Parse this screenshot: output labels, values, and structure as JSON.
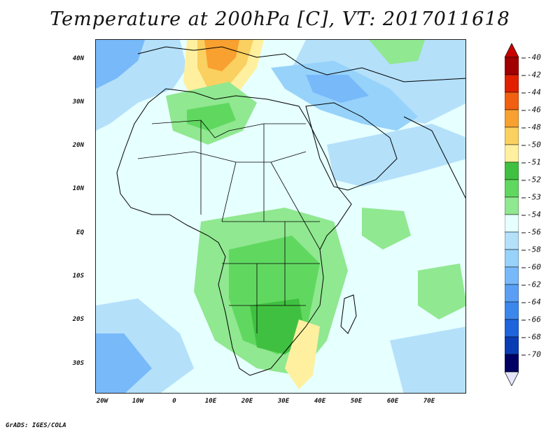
{
  "title": "Temperature at 200hPa [C], VT: 2017011618",
  "credit": "GrADS: IGES/COLA",
  "map": {
    "lat_labels": [
      "40N",
      "30N",
      "20N",
      "10N",
      "EQ",
      "10S",
      "20S",
      "30S"
    ],
    "lon_labels": [
      "20W",
      "10W",
      "0",
      "10E",
      "20E",
      "30E",
      "40E",
      "50E",
      "60E",
      "70E"
    ],
    "background_color": "#e6ffff"
  },
  "colorbar": {
    "labels": [
      "-40",
      "-42",
      "-44",
      "-46",
      "-48",
      "-50",
      "-51",
      "-52",
      "-53",
      "-54",
      "-56",
      "-58",
      "-60",
      "-62",
      "-64",
      "-66",
      "-68",
      "-70"
    ],
    "colors": [
      "#a00000",
      "#e02000",
      "#f06010",
      "#f8a030",
      "#fad060",
      "#fff0a0",
      "#40c040",
      "#60d860",
      "#90e890",
      "#e6ffff",
      "#b4e0fa",
      "#96d2fa",
      "#78b9fa",
      "#5a9ff5",
      "#3c87eb",
      "#1e64dc",
      "#0a3cb4",
      "#000064"
    ],
    "top_arrow_color": "#c80000",
    "bottom_arrow_color": "#e6e6fa"
  }
}
